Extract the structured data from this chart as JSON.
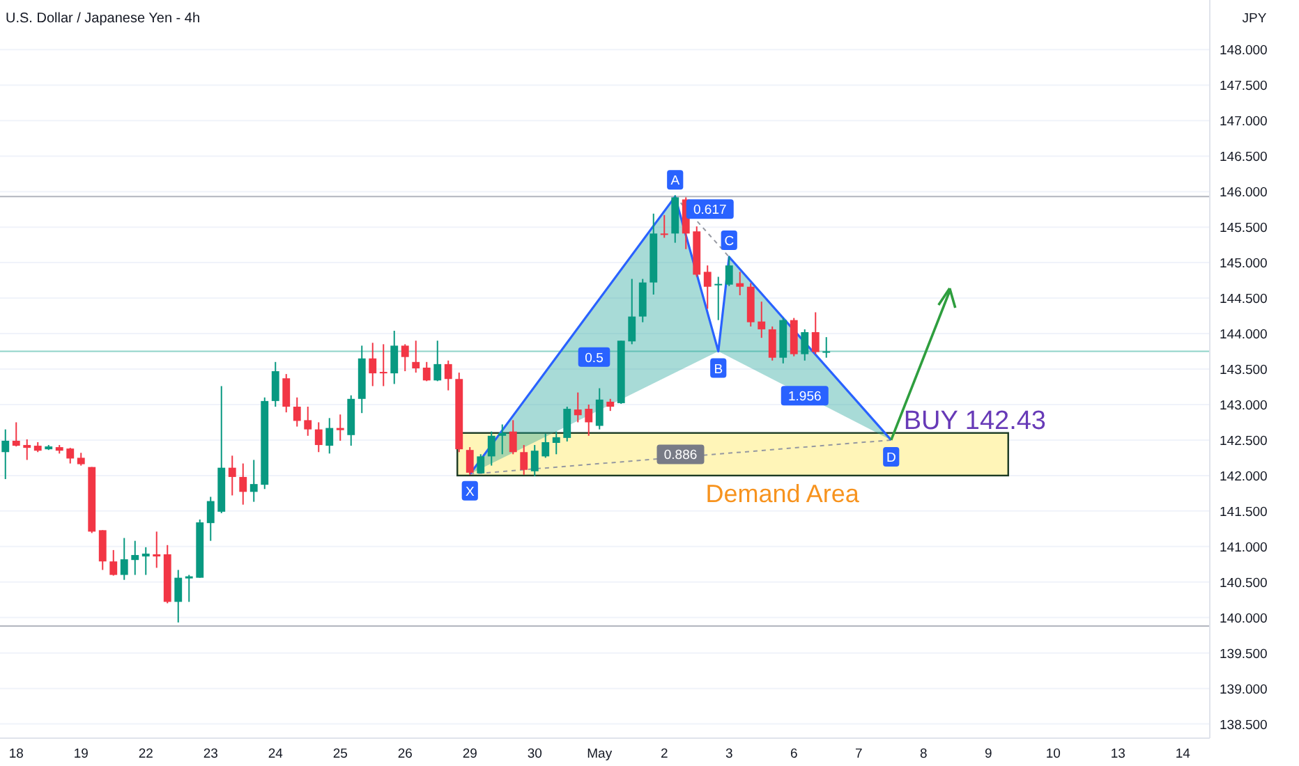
{
  "chart_data": {
    "type": "candlestick",
    "title": "U.S. Dollar / Japanese Yen - 4h",
    "ylabel": "JPY",
    "categories": [
      null,
      "18",
      null,
      null,
      null,
      null,
      null,
      "19",
      null,
      null,
      null,
      null,
      null,
      "22",
      null,
      null,
      null,
      null,
      null,
      "23",
      null,
      null,
      null,
      null,
      null,
      "24",
      null,
      null,
      null,
      null,
      null,
      "25",
      null,
      null,
      null,
      null,
      null,
      "26",
      null,
      null,
      null,
      null,
      null,
      "29",
      null,
      null,
      null,
      null,
      null,
      "30",
      null,
      null,
      null,
      null,
      null,
      "May",
      null,
      null,
      null,
      null,
      null,
      "2",
      null,
      null,
      null,
      null,
      null,
      "3",
      null,
      null,
      null,
      null,
      null,
      "6",
      null,
      null,
      null,
      null,
      null,
      "7",
      null,
      null,
      null,
      null,
      null,
      "8",
      null,
      null,
      null,
      null,
      null,
      "9",
      null,
      null,
      null,
      null,
      null,
      "10",
      null,
      null,
      null,
      null,
      null,
      "13",
      null,
      null,
      null,
      null,
      null,
      "14",
      null,
      null
    ],
    "ohlc": [
      [
        142.33,
        142.65,
        141.95,
        142.49
      ],
      [
        142.49,
        142.75,
        142.41,
        142.42
      ],
      [
        142.43,
        142.51,
        142.22,
        142.39
      ],
      [
        142.42,
        142.47,
        142.33,
        142.35
      ],
      [
        142.37,
        142.43,
        142.36,
        142.41
      ],
      [
        142.4,
        142.43,
        142.31,
        142.35
      ],
      [
        142.38,
        142.39,
        142.17,
        142.24
      ],
      [
        142.25,
        142.32,
        142.14,
        142.16
      ],
      [
        142.12,
        142.12,
        141.19,
        141.21
      ],
      [
        141.23,
        141.23,
        140.67,
        140.79
      ],
      [
        140.79,
        140.95,
        140.59,
        140.6
      ],
      [
        140.6,
        141.12,
        140.53,
        140.82
      ],
      [
        140.81,
        141.08,
        140.6,
        140.88
      ],
      [
        140.86,
        140.99,
        140.6,
        140.9
      ],
      [
        140.89,
        141.21,
        140.7,
        140.86
      ],
      [
        140.89,
        141.02,
        140.2,
        140.22
      ],
      [
        140.22,
        140.67,
        139.93,
        140.56
      ],
      [
        140.55,
        140.6,
        140.22,
        140.58
      ],
      [
        140.56,
        141.38,
        140.56,
        141.34
      ],
      [
        141.33,
        141.7,
        141.08,
        141.64
      ],
      [
        141.49,
        143.26,
        141.47,
        142.11
      ],
      [
        142.11,
        142.28,
        141.72,
        141.98
      ],
      [
        141.98,
        142.17,
        141.59,
        141.77
      ],
      [
        141.77,
        142.22,
        141.63,
        141.88
      ],
      [
        141.87,
        143.1,
        141.81,
        143.05
      ],
      [
        143.05,
        143.6,
        142.97,
        143.47
      ],
      [
        143.37,
        143.43,
        142.89,
        142.97
      ],
      [
        142.97,
        143.1,
        142.69,
        142.77
      ],
      [
        142.78,
        142.97,
        142.56,
        142.65
      ],
      [
        142.65,
        142.75,
        142.33,
        142.43
      ],
      [
        142.42,
        142.81,
        142.31,
        142.67
      ],
      [
        142.67,
        142.86,
        142.49,
        142.64
      ],
      [
        142.57,
        143.13,
        142.42,
        143.08
      ],
      [
        143.08,
        143.83,
        142.88,
        143.65
      ],
      [
        143.65,
        143.87,
        143.26,
        143.44
      ],
      [
        143.46,
        143.85,
        143.26,
        143.44
      ],
      [
        143.44,
        144.04,
        143.29,
        143.83
      ],
      [
        143.83,
        143.85,
        143.47,
        143.67
      ],
      [
        143.6,
        143.9,
        143.45,
        143.51
      ],
      [
        143.52,
        143.6,
        143.33,
        143.34
      ],
      [
        143.34,
        143.9,
        143.33,
        143.57
      ],
      [
        143.57,
        143.62,
        143.2,
        143.36
      ],
      [
        143.36,
        143.45,
        142.33,
        142.37
      ],
      [
        142.36,
        142.4,
        142.01,
        142.04
      ],
      [
        142.03,
        142.3,
        142.03,
        142.27
      ],
      [
        142.27,
        142.62,
        142.14,
        142.56
      ],
      [
        142.56,
        142.72,
        142.3,
        142.6
      ],
      [
        142.62,
        142.78,
        142.3,
        142.33
      ],
      [
        142.33,
        142.43,
        142.01,
        142.08
      ],
      [
        142.06,
        142.43,
        141.99,
        142.35
      ],
      [
        142.27,
        142.59,
        142.25,
        142.47
      ],
      [
        142.46,
        142.62,
        142.3,
        142.54
      ],
      [
        142.53,
        142.97,
        142.48,
        142.94
      ],
      [
        142.93,
        143.17,
        142.75,
        142.85
      ],
      [
        142.94,
        143,
        142.56,
        142.75
      ],
      [
        142.7,
        143.23,
        142.65,
        143.07
      ],
      [
        143.04,
        143.08,
        142.91,
        142.97
      ],
      [
        143.02,
        143.9,
        143.01,
        143.9
      ],
      [
        143.89,
        144.77,
        143.85,
        144.24
      ],
      [
        144.24,
        144.77,
        144.16,
        144.72
      ],
      [
        144.72,
        145.69,
        144.55,
        145.41
      ],
      [
        145.41,
        145.67,
        145.35,
        145.39
      ],
      [
        145.41,
        145.95,
        145.28,
        145.92
      ],
      [
        145.89,
        145.92,
        145.19,
        145.41
      ],
      [
        145.44,
        145.51,
        144.8,
        144.83
      ],
      [
        144.87,
        144.96,
        144.35,
        144.66
      ],
      [
        144.68,
        144.8,
        144.19,
        144.7
      ],
      [
        144.69,
        145.09,
        144.67,
        144.96
      ],
      [
        144.71,
        144.87,
        144.54,
        144.66
      ],
      [
        144.66,
        144.71,
        144.1,
        144.16
      ],
      [
        144.17,
        144.45,
        143.94,
        144.06
      ],
      [
        144.06,
        144.1,
        143.62,
        143.66
      ],
      [
        143.66,
        144.22,
        143.58,
        144.19
      ],
      [
        144.19,
        144.22,
        143.68,
        143.71
      ],
      [
        143.71,
        144.06,
        143.62,
        144.02
      ],
      [
        144.02,
        144.3,
        143.71,
        143.74
      ],
      [
        143.73,
        143.95,
        143.66,
        143.75
      ],
      null,
      null,
      null,
      null,
      null,
      null,
      null,
      null,
      null,
      null,
      null,
      null,
      null,
      null,
      null,
      null,
      null,
      null,
      null,
      null,
      null,
      null,
      null,
      null,
      null,
      null,
      null,
      null,
      null,
      null,
      null,
      null,
      null,
      null,
      null
    ],
    "series": [
      {
        "type": "line",
        "color": "#2962ff",
        "values": [
          null,
          null,
          null,
          null,
          null,
          null,
          null,
          null,
          null,
          null,
          null,
          null,
          null,
          null,
          null,
          null,
          null,
          null,
          null,
          null,
          null,
          null,
          null,
          null,
          null,
          null,
          null,
          null,
          null,
          null,
          null,
          null,
          null,
          null,
          null,
          null,
          null,
          null,
          null,
          null,
          null,
          null,
          null,
          142.02,
          null,
          null,
          null,
          null,
          null,
          null,
          null,
          null,
          null,
          null,
          null,
          null,
          null,
          null,
          null,
          null,
          null,
          null,
          145.93,
          null,
          null,
          null,
          143.75,
          145.08,
          null,
          null,
          null,
          null,
          null,
          null,
          null,
          null,
          null,
          null,
          null,
          null,
          null,
          null,
          142.5,
          null,
          null,
          null,
          null,
          null,
          null,
          null,
          null,
          null,
          null,
          null,
          null,
          null,
          null,
          null,
          null,
          null,
          null,
          null,
          null,
          null,
          null,
          null,
          null,
          null,
          null,
          null,
          null,
          null
        ]
      }
    ],
    "ylim": [
      138.3,
      148.7
    ],
    "yticks": [
      {
        "value": 138.5,
        "label": "138.500"
      },
      {
        "value": 139,
        "label": "139.000"
      },
      {
        "value": 139.5,
        "label": "139.500"
      },
      {
        "value": 140,
        "label": "140.000"
      },
      {
        "value": 140.5,
        "label": "140.500"
      },
      {
        "value": 141,
        "label": "141.000"
      },
      {
        "value": 141.5,
        "label": "141.500"
      },
      {
        "value": 142,
        "label": "142.000"
      },
      {
        "value": 142.5,
        "label": "142.500"
      },
      {
        "value": 143,
        "label": "143.000"
      },
      {
        "value": 143.5,
        "label": "143.500"
      },
      {
        "value": 144,
        "label": "144.000"
      },
      {
        "value": 144.5,
        "label": "144.500"
      },
      {
        "value": 145,
        "label": "145.000"
      },
      {
        "value": 145.5,
        "label": "145.500"
      },
      {
        "value": 146,
        "label": "146.000"
      },
      {
        "value": 146.5,
        "label": "146.500"
      },
      {
        "value": 147,
        "label": "147.000"
      },
      {
        "value": 147.5,
        "label": "147.500"
      },
      {
        "value": 148,
        "label": "148.000"
      }
    ],
    "grid": "y",
    "ref_lines": [
      {
        "axis": "y",
        "value": 145.93,
        "color": "#b2b5be"
      },
      {
        "axis": "y",
        "value": 143.75,
        "color": "#8fd3c9"
      },
      {
        "axis": "y",
        "value": 139.88,
        "color": "#b2b5be"
      }
    ],
    "bands": [
      {
        "axis": "y",
        "from": 142.0,
        "to": 142.6,
        "label": "Demand Area",
        "color": "#fff5b8"
      }
    ],
    "annotations": [
      {
        "text": "X",
        "y": 142.02
      },
      {
        "text": "A",
        "y": 145.93
      },
      {
        "text": "B",
        "y": 143.75
      },
      {
        "text": "C",
        "y": 145.08
      },
      {
        "text": "D",
        "y": 142.5
      },
      "0.5",
      "0.617",
      "1.956",
      "0.886",
      {
        "text": "BUY 142.43",
        "y": 142.5
      }
    ]
  }
}
